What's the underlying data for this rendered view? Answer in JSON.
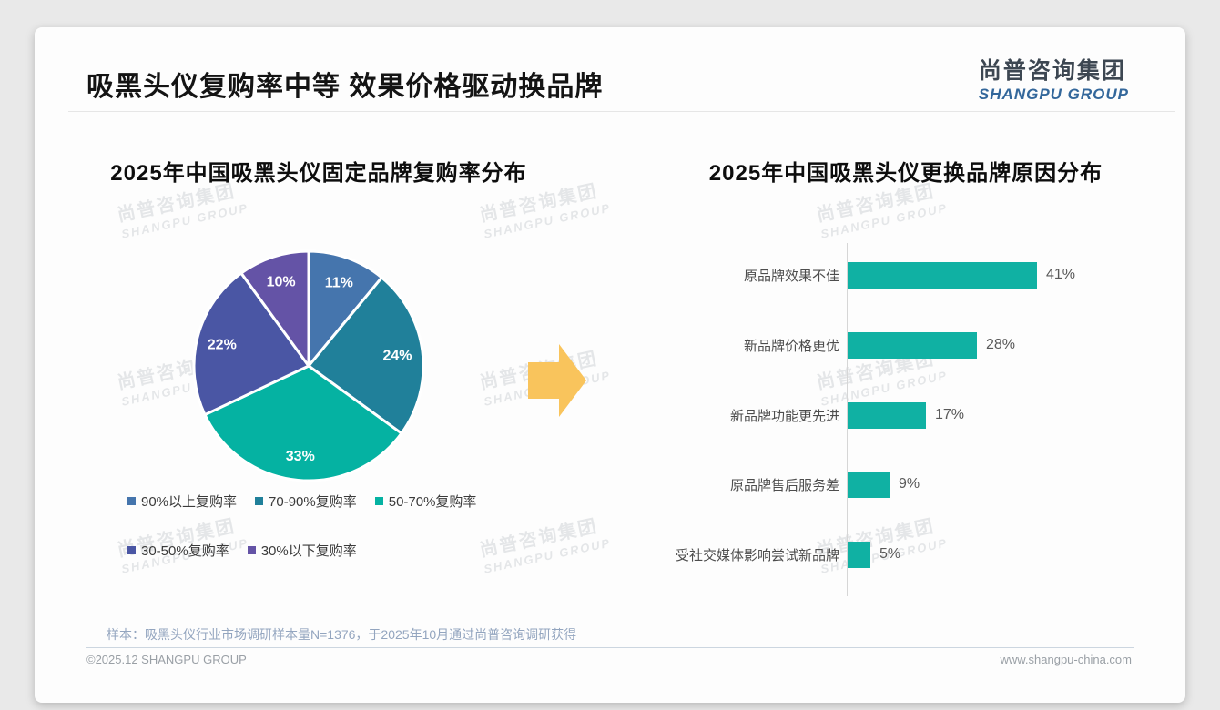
{
  "page": {
    "title": "吸黑头仪复购率中等 效果价格驱动换品牌",
    "logo": {
      "cn": "尚普咨询集团",
      "en": "SHANGPU GROUP"
    },
    "watermark": {
      "cn": "尚普咨询集团",
      "en": "SHANGPU GROUP"
    },
    "arrow_color": "#f9c45c",
    "footer": {
      "sample_note": "样本：吸黑头仪行业市场调研样本量N=1376，于2025年10月通过尚普咨询调研获得",
      "copyright": "©2025.12 SHANGPU GROUP",
      "website": "www.shangpu-china.com"
    }
  },
  "chart_data": [
    {
      "type": "pie",
      "title": "2025年中国吸黑头仪固定品牌复购率分布",
      "direction": "clockwise_from_top",
      "data_label_suffix": "%",
      "legend_position": "bottom",
      "slices": [
        {
          "label": "90%以上复购率",
          "value": 11,
          "color": "#4575ad"
        },
        {
          "label": "70-90%复购率",
          "value": 24,
          "color": "#20809a"
        },
        {
          "label": "50-70%复购率",
          "value": 33,
          "color": "#05b2a2"
        },
        {
          "label": "30-50%复购率",
          "value": 22,
          "color": "#4a56a4"
        },
        {
          "label": "30%以下复购率",
          "value": 10,
          "color": "#6453a6"
        }
      ]
    },
    {
      "type": "bar",
      "orientation": "horizontal",
      "title": "2025年中国吸黑头仪更换品牌原因分布",
      "categories": [
        "原品牌效果不佳",
        "新品牌价格更优",
        "新品牌功能更先进",
        "原品牌售后服务差",
        "受社交媒体影响尝试新品牌"
      ],
      "values": [
        41,
        28,
        17,
        9,
        5
      ],
      "value_suffix": "%",
      "bar_color": "#10b1a3",
      "xlim": [
        0,
        45
      ],
      "grid": false
    }
  ]
}
